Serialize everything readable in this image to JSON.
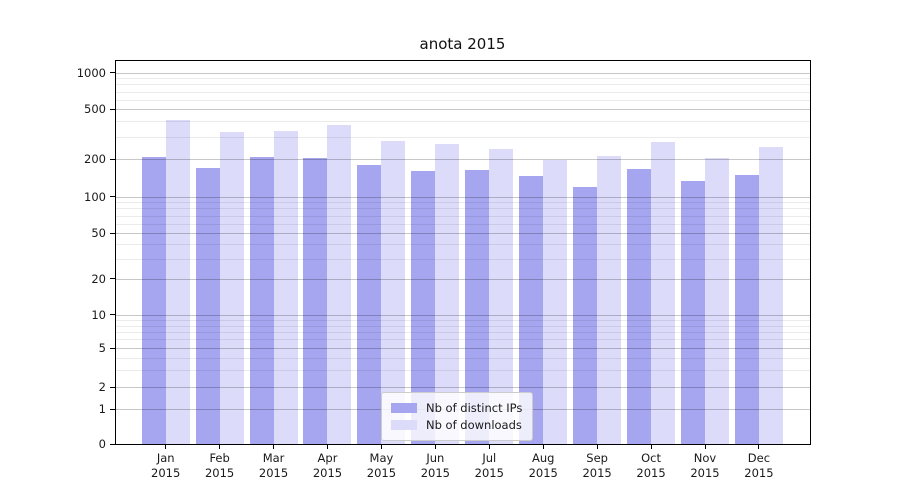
{
  "chart_data": {
    "type": "bar",
    "title": "anota 2015",
    "categories": [
      "Jan 2015",
      "Feb 2015",
      "Mar 2015",
      "Apr 2015",
      "May 2015",
      "Jun 2015",
      "Jul 2015",
      "Aug 2015",
      "Sep 2015",
      "Oct 2015",
      "Nov 2015",
      "Dec 2015"
    ],
    "x_tick_months": [
      "Jan",
      "Feb",
      "Mar",
      "Apr",
      "May",
      "Jun",
      "Jul",
      "Aug",
      "Sep",
      "Oct",
      "Nov",
      "Dec"
    ],
    "x_tick_year": "2015",
    "series": [
      {
        "name": "Nb of distinct IPs",
        "color": "#a5a5f0",
        "values": [
          210,
          170,
          210,
          205,
          180,
          162,
          164,
          146,
          119,
          166,
          135,
          150
        ]
      },
      {
        "name": "Nb of downloads",
        "color": "#dcdcfa",
        "values": [
          413,
          328,
          338,
          378,
          281,
          264,
          241,
          197,
          213,
          276,
          204,
          250
        ]
      }
    ],
    "yscale": "symlog",
    "yticks": [
      0,
      1,
      2,
      5,
      10,
      20,
      50,
      100,
      200,
      500,
      1000
    ],
    "ylim": [
      0,
      1260
    ],
    "grid": "both",
    "legend_position": "lower center inside"
  },
  "colors": {
    "background": "#ffffff",
    "axis": "#000000",
    "grid_major": "#c9c9c9",
    "grid_minor": "#e8e8e8",
    "text": "#1a1a1a",
    "legend_border": "#cccccc"
  }
}
